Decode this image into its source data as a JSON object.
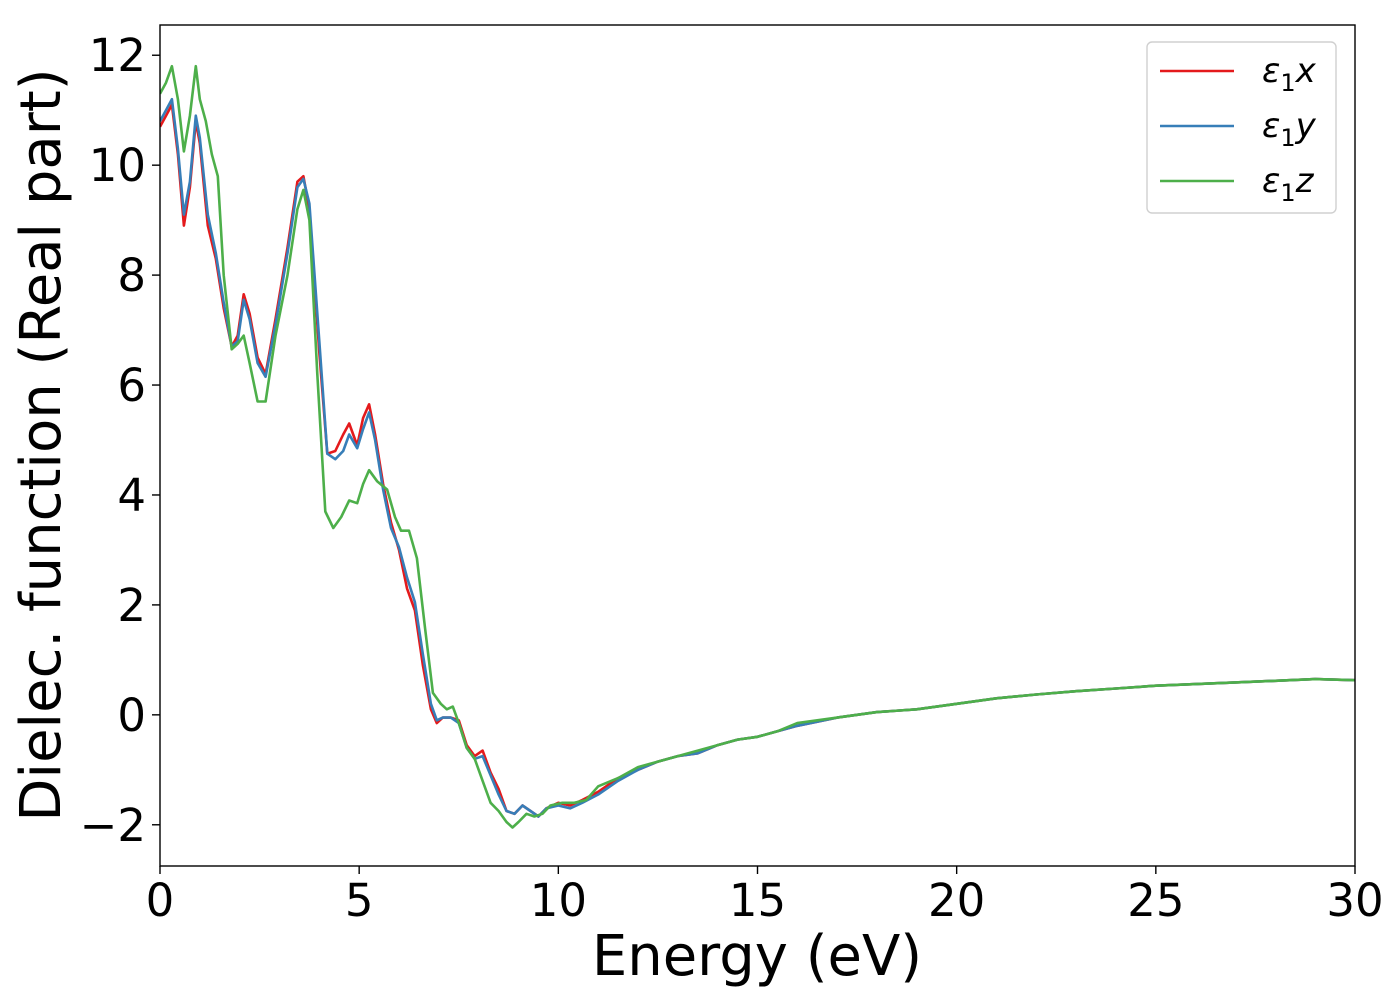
{
  "chart_data": {
    "type": "line",
    "xlabel": "Energy (eV)",
    "ylabel": "Dielec. function (Real part)",
    "xlim": [
      0,
      30
    ],
    "ylim": [
      -2.75,
      12.55
    ],
    "xticks": [
      0,
      5,
      10,
      15,
      20,
      25,
      30
    ],
    "yticks": [
      -2,
      0,
      2,
      4,
      6,
      8,
      10,
      12
    ],
    "grid": false,
    "legend_position": "top-right",
    "series": [
      {
        "name": "ε1x",
        "color": "#e41a1c",
        "x": [
          0,
          0.15,
          0.3,
          0.45,
          0.6,
          0.75,
          0.9,
          1.0,
          1.2,
          1.4,
          1.6,
          1.8,
          1.95,
          2.1,
          2.25,
          2.45,
          2.65,
          2.9,
          3.2,
          3.45,
          3.6,
          3.75,
          4.0,
          4.2,
          4.4,
          4.6,
          4.75,
          4.95,
          5.1,
          5.25,
          5.4,
          5.6,
          5.8,
          6.0,
          6.2,
          6.4,
          6.6,
          6.8,
          6.95,
          7.1,
          7.3,
          7.5,
          7.7,
          7.9,
          8.1,
          8.3,
          8.5,
          8.7,
          8.9,
          9.1,
          9.3,
          9.5,
          9.7,
          10.0,
          10.3,
          10.6,
          11.0,
          11.5,
          12.0,
          12.5,
          13.0,
          13.5,
          14.0,
          14.5,
          15.0,
          15.5,
          16.0,
          17.0,
          18.0,
          19.0,
          20.0,
          21.0,
          22.0,
          23.0,
          24.0,
          25.0,
          26.0,
          27.0,
          28.0,
          29.0,
          30.0
        ],
        "y": [
          10.7,
          10.9,
          11.1,
          10.2,
          8.9,
          9.6,
          10.8,
          10.4,
          8.9,
          8.3,
          7.4,
          6.7,
          6.9,
          7.65,
          7.3,
          6.5,
          6.2,
          7.2,
          8.5,
          9.7,
          9.8,
          9.2,
          6.6,
          4.75,
          4.8,
          5.1,
          5.3,
          4.9,
          5.4,
          5.65,
          5.1,
          4.2,
          3.5,
          3.0,
          2.3,
          1.9,
          0.9,
          0.1,
          -0.15,
          -0.05,
          -0.05,
          -0.1,
          -0.55,
          -0.75,
          -0.65,
          -1.05,
          -1.35,
          -1.75,
          -1.8,
          -1.65,
          -1.75,
          -1.85,
          -1.7,
          -1.6,
          -1.65,
          -1.55,
          -1.4,
          -1.15,
          -1.0,
          -0.85,
          -0.75,
          -0.7,
          -0.55,
          -0.45,
          -0.4,
          -0.3,
          -0.2,
          -0.05,
          0.05,
          0.1,
          0.2,
          0.3,
          0.37,
          0.43,
          0.48,
          0.53,
          0.56,
          0.59,
          0.62,
          0.65,
          0.63
        ]
      },
      {
        "name": "ε1y",
        "color": "#377eb8",
        "x": [
          0,
          0.15,
          0.3,
          0.45,
          0.6,
          0.75,
          0.9,
          1.0,
          1.2,
          1.4,
          1.6,
          1.8,
          1.95,
          2.1,
          2.25,
          2.45,
          2.65,
          2.9,
          3.2,
          3.45,
          3.6,
          3.75,
          4.0,
          4.2,
          4.4,
          4.6,
          4.75,
          4.95,
          5.1,
          5.25,
          5.4,
          5.6,
          5.8,
          6.0,
          6.2,
          6.4,
          6.6,
          6.8,
          6.95,
          7.1,
          7.3,
          7.5,
          7.7,
          7.9,
          8.1,
          8.3,
          8.5,
          8.7,
          8.9,
          9.1,
          9.3,
          9.5,
          9.7,
          10.0,
          10.3,
          10.6,
          11.0,
          11.5,
          12.0,
          12.5,
          13.0,
          13.5,
          14.0,
          14.5,
          15.0,
          15.5,
          16.0,
          17.0,
          18.0,
          19.0,
          20.0,
          21.0,
          22.0,
          23.0,
          24.0,
          25.0,
          26.0,
          27.0,
          28.0,
          29.0,
          30.0
        ],
        "y": [
          10.8,
          11.0,
          11.2,
          10.3,
          9.1,
          9.7,
          10.9,
          10.5,
          9.1,
          8.4,
          7.5,
          6.7,
          6.8,
          7.55,
          7.2,
          6.4,
          6.15,
          7.1,
          8.4,
          9.6,
          9.75,
          9.3,
          6.8,
          4.75,
          4.65,
          4.8,
          5.1,
          4.85,
          5.2,
          5.5,
          5.0,
          4.1,
          3.4,
          3.05,
          2.5,
          2.05,
          1.1,
          0.2,
          -0.1,
          -0.05,
          -0.05,
          -0.15,
          -0.6,
          -0.8,
          -0.75,
          -1.1,
          -1.45,
          -1.75,
          -1.8,
          -1.65,
          -1.75,
          -1.85,
          -1.7,
          -1.65,
          -1.7,
          -1.6,
          -1.45,
          -1.2,
          -1.0,
          -0.85,
          -0.75,
          -0.7,
          -0.55,
          -0.45,
          -0.4,
          -0.3,
          -0.2,
          -0.05,
          0.05,
          0.1,
          0.2,
          0.3,
          0.37,
          0.43,
          0.48,
          0.53,
          0.56,
          0.59,
          0.62,
          0.65,
          0.63
        ]
      },
      {
        "name": "ε1z",
        "color": "#4daf4a",
        "x": [
          0,
          0.15,
          0.3,
          0.45,
          0.6,
          0.75,
          0.9,
          1.0,
          1.15,
          1.3,
          1.45,
          1.6,
          1.8,
          1.95,
          2.1,
          2.25,
          2.45,
          2.65,
          2.9,
          3.2,
          3.45,
          3.6,
          3.75,
          3.95,
          4.15,
          4.35,
          4.55,
          4.75,
          4.95,
          5.1,
          5.25,
          5.45,
          5.7,
          5.9,
          6.05,
          6.25,
          6.45,
          6.65,
          6.85,
          7.05,
          7.2,
          7.35,
          7.5,
          7.7,
          7.9,
          8.1,
          8.3,
          8.5,
          8.7,
          8.85,
          9.0,
          9.2,
          9.4,
          9.6,
          9.8,
          10.1,
          10.4,
          10.7,
          11.0,
          11.5,
          12.0,
          12.5,
          13.0,
          13.5,
          14.0,
          14.5,
          15.0,
          15.5,
          16.0,
          17.0,
          18.0,
          19.0,
          20.0,
          21.0,
          22.0,
          23.0,
          24.0,
          25.0,
          26.0,
          27.0,
          28.0,
          29.0,
          30.0
        ],
        "y": [
          11.3,
          11.5,
          11.8,
          11.2,
          10.25,
          10.9,
          11.8,
          11.2,
          10.8,
          10.2,
          9.8,
          8.0,
          6.65,
          6.75,
          6.9,
          6.4,
          5.7,
          5.7,
          6.9,
          8.0,
          9.2,
          9.55,
          9.0,
          6.2,
          3.7,
          3.4,
          3.6,
          3.9,
          3.85,
          4.2,
          4.45,
          4.25,
          4.1,
          3.6,
          3.35,
          3.35,
          2.85,
          1.6,
          0.4,
          0.2,
          0.1,
          0.15,
          -0.15,
          -0.6,
          -0.8,
          -1.2,
          -1.6,
          -1.75,
          -1.95,
          -2.05,
          -1.95,
          -1.8,
          -1.85,
          -1.8,
          -1.65,
          -1.6,
          -1.6,
          -1.55,
          -1.3,
          -1.15,
          -0.95,
          -0.85,
          -0.75,
          -0.65,
          -0.55,
          -0.45,
          -0.4,
          -0.3,
          -0.15,
          -0.05,
          0.05,
          0.1,
          0.2,
          0.3,
          0.37,
          0.43,
          0.48,
          0.53,
          0.56,
          0.59,
          0.62,
          0.65,
          0.63
        ]
      }
    ]
  },
  "legend": {
    "items": [
      {
        "label_base": "ε",
        "label_sub": "1",
        "label_var": "x"
      },
      {
        "label_base": "ε",
        "label_sub": "1",
        "label_var": "y"
      },
      {
        "label_base": "ε",
        "label_sub": "1",
        "label_var": "z"
      }
    ]
  }
}
